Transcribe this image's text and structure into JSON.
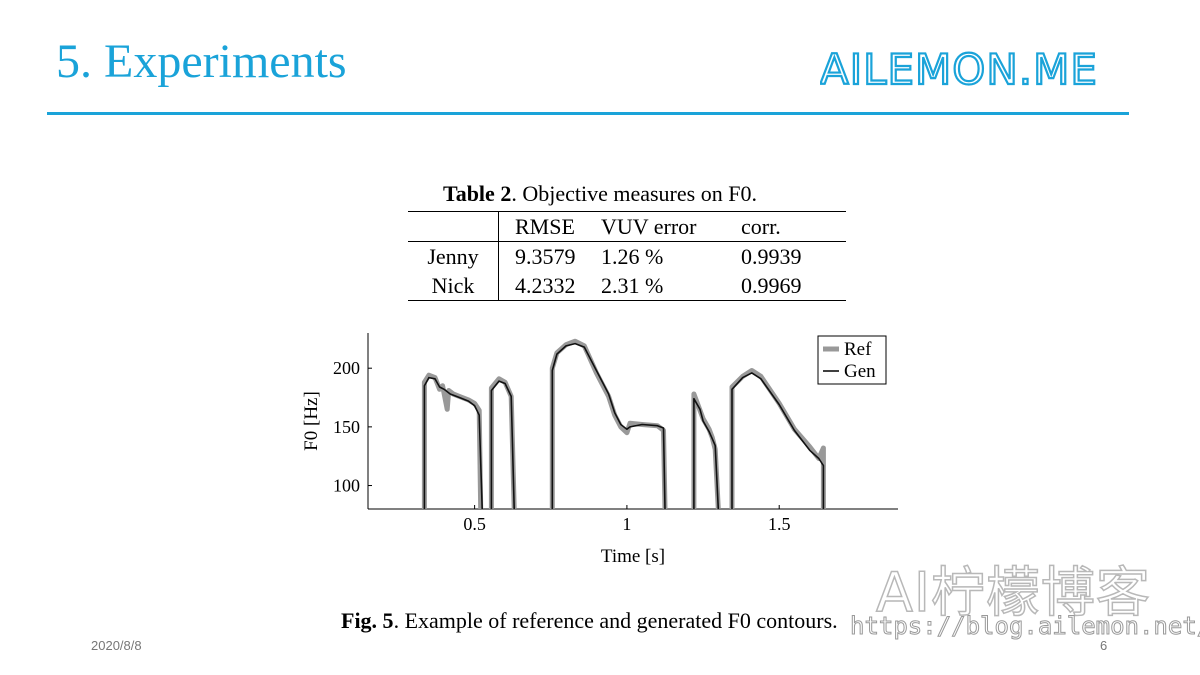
{
  "slide": {
    "title": "5. Experiments",
    "logo_text": "AILEMON.ME",
    "date": "2020/8/8",
    "page_number": "6"
  },
  "table": {
    "caption_bold": "Table 2",
    "caption_rest": ". Objective measures on F0.",
    "columns": [
      "",
      "RMSE",
      "VUV error",
      "corr."
    ],
    "rows": [
      {
        "name": "Jenny",
        "rmse": "9.3579",
        "vuv": "1.26 %",
        "corr": "0.9939"
      },
      {
        "name": "Nick",
        "rmse": "4.2332",
        "vuv": "2.31 %",
        "corr": "0.9969"
      }
    ]
  },
  "figure": {
    "caption_bold": "Fig. 5",
    "caption_rest": ". Example of reference and generated F0 contours."
  },
  "watermark": {
    "cn": "AI柠檬博客",
    "url": "https://blog.ailemon.net/"
  },
  "chart_data": {
    "type": "line",
    "xlabel": "Time [s]",
    "ylabel": "F0 [Hz]",
    "xlim": [
      0.15,
      1.89
    ],
    "ylim": [
      80,
      230
    ],
    "xticks": [
      0.5,
      1,
      1.5
    ],
    "xtick_labels": [
      "0.5",
      "1",
      "1.5"
    ],
    "yticks": [
      100,
      150,
      200
    ],
    "ytick_labels": [
      "100",
      "150",
      "200"
    ],
    "grid": false,
    "legend_position": "top-right",
    "series": [
      {
        "name": "Ref",
        "color": "#999999",
        "segments": [
          [
            [
              0.335,
              80
            ],
            [
              0.335,
              188
            ],
            [
              0.35,
              194
            ],
            [
              0.37,
              192
            ],
            [
              0.385,
              182
            ],
            [
              0.395,
              185
            ],
            [
              0.41,
              165
            ],
            [
              0.415,
              181
            ],
            [
              0.43,
              178
            ],
            [
              0.45,
              176
            ],
            [
              0.48,
              173
            ],
            [
              0.5,
              170
            ],
            [
              0.515,
              164
            ],
            [
              0.52,
              80
            ]
          ],
          [
            [
              0.555,
              80
            ],
            [
              0.555,
              183
            ],
            [
              0.58,
              191
            ],
            [
              0.6,
              188
            ],
            [
              0.62,
              176
            ],
            [
              0.63,
              80
            ]
          ],
          [
            [
              0.755,
              80
            ],
            [
              0.755,
              200
            ],
            [
              0.77,
              213
            ],
            [
              0.8,
              220
            ],
            [
              0.83,
              223
            ],
            [
              0.86,
              219
            ],
            [
              0.9,
              196
            ],
            [
              0.94,
              176
            ],
            [
              0.96,
              160
            ],
            [
              0.98,
              150
            ],
            [
              1.0,
              145
            ],
            [
              1.01,
              153
            ],
            [
              1.05,
              152
            ],
            [
              1.1,
              151
            ],
            [
              1.12,
              147
            ],
            [
              1.125,
              80
            ]
          ],
          [
            [
              1.22,
              80
            ],
            [
              1.22,
              178
            ],
            [
              1.24,
              164
            ],
            [
              1.25,
              157
            ],
            [
              1.27,
              148
            ],
            [
              1.28,
              141
            ],
            [
              1.29,
              131
            ],
            [
              1.3,
              80
            ]
          ],
          [
            [
              1.345,
              80
            ],
            [
              1.345,
              184
            ],
            [
              1.38,
              193
            ],
            [
              1.41,
              198
            ],
            [
              1.44,
              193
            ],
            [
              1.5,
              170
            ],
            [
              1.55,
              148
            ],
            [
              1.6,
              133
            ],
            [
              1.63,
              123
            ],
            [
              1.645,
              132
            ],
            [
              1.645,
              80
            ]
          ]
        ]
      },
      {
        "name": "Gen",
        "color": "#111111",
        "segments": [
          [
            [
              0.335,
              80
            ],
            [
              0.335,
              185
            ],
            [
              0.35,
              192
            ],
            [
              0.37,
              191
            ],
            [
              0.385,
              184
            ],
            [
              0.4,
              182
            ],
            [
              0.42,
              178
            ],
            [
              0.45,
              175
            ],
            [
              0.48,
              172
            ],
            [
              0.5,
              168
            ],
            [
              0.515,
              160
            ],
            [
              0.525,
              80
            ]
          ],
          [
            [
              0.555,
              80
            ],
            [
              0.555,
              181
            ],
            [
              0.58,
              189
            ],
            [
              0.6,
              187
            ],
            [
              0.62,
              176
            ],
            [
              0.63,
              80
            ]
          ],
          [
            [
              0.755,
              80
            ],
            [
              0.755,
              198
            ],
            [
              0.77,
              212
            ],
            [
              0.8,
              219
            ],
            [
              0.83,
              221
            ],
            [
              0.86,
              218
            ],
            [
              0.9,
              198
            ],
            [
              0.94,
              178
            ],
            [
              0.96,
              162
            ],
            [
              0.98,
              152
            ],
            [
              1.0,
              148
            ],
            [
              1.01,
              150
            ],
            [
              1.05,
              152
            ],
            [
              1.1,
              151
            ],
            [
              1.12,
              149
            ],
            [
              1.125,
              80
            ]
          ],
          [
            [
              1.22,
              80
            ],
            [
              1.22,
              174
            ],
            [
              1.24,
              165
            ],
            [
              1.25,
              155
            ],
            [
              1.27,
              146
            ],
            [
              1.28,
              140
            ],
            [
              1.29,
              134
            ],
            [
              1.3,
              80
            ]
          ],
          [
            [
              1.345,
              80
            ],
            [
              1.345,
              182
            ],
            [
              1.38,
              192
            ],
            [
              1.41,
              196
            ],
            [
              1.44,
              191
            ],
            [
              1.5,
              169
            ],
            [
              1.55,
              147
            ],
            [
              1.6,
              130
            ],
            [
              1.63,
              123
            ],
            [
              1.645,
              117
            ],
            [
              1.645,
              80
            ]
          ]
        ]
      }
    ]
  }
}
